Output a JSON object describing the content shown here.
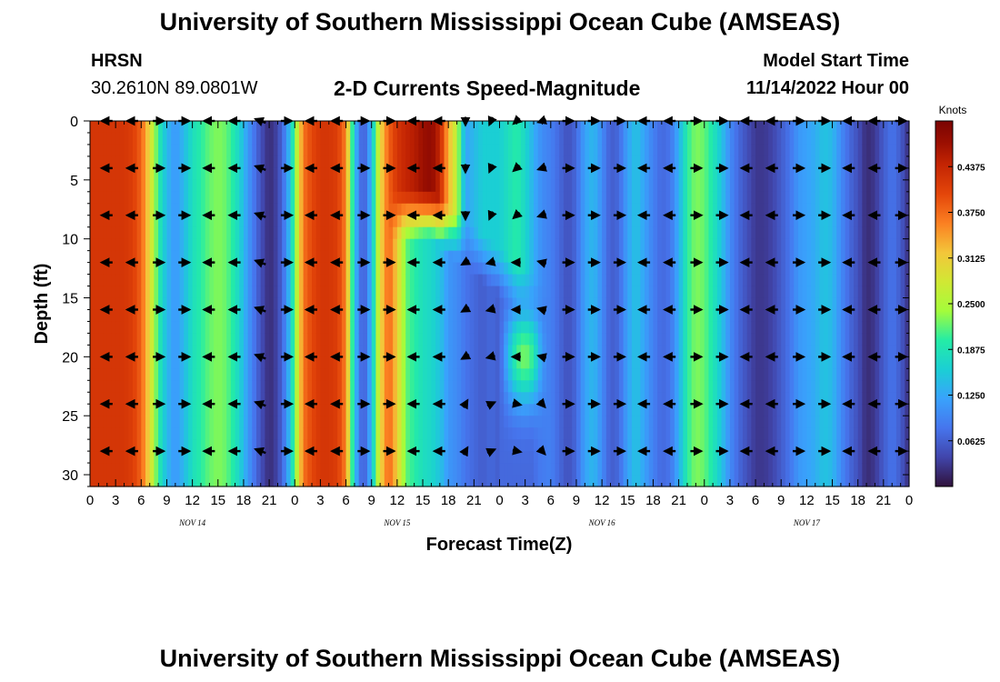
{
  "header": {
    "title": "University of Southern Mississippi Ocean Cube (AMSEAS)",
    "station": "HRSN",
    "coordinates": "30.2610N  89.0801W",
    "subtitle": "2-D Currents Speed-Magnitude",
    "model_start_label": "Model Start Time",
    "model_start_value": "11/14/2022 Hour 00"
  },
  "footer": {
    "title": "University of Southern Mississippi Ocean Cube (AMSEAS)"
  },
  "chart_data": {
    "type": "heatmap",
    "title": "2-D Currents Speed-Magnitude",
    "xlabel": "Forecast Time(Z)",
    "ylabel": "Depth (ft)",
    "x_range_hours": [
      0,
      96
    ],
    "ylim": [
      0,
      31
    ],
    "y_inverted": true,
    "x_tick_labels": [
      "0",
      "3",
      "6",
      "9",
      "12",
      "15",
      "18",
      "21",
      "0",
      "3",
      "6",
      "9",
      "12",
      "15",
      "18",
      "21",
      "0",
      "3",
      "6",
      "9",
      "12",
      "15",
      "18",
      "21",
      "0",
      "3",
      "6",
      "9",
      "12",
      "15",
      "18",
      "21",
      "0"
    ],
    "day_labels": [
      {
        "text": "NOV 14",
        "hour": 12
      },
      {
        "text": "NOV 15",
        "hour": 36
      },
      {
        "text": "NOV 16",
        "hour": 60
      },
      {
        "text": "NOV 17",
        "hour": 84
      }
    ],
    "y_ticks": [
      0,
      5,
      10,
      15,
      20,
      25,
      30
    ],
    "colorbar": {
      "label": "Knots",
      "range": [
        0,
        0.5
      ],
      "ticks": [
        "0.0625",
        "0.1250",
        "0.1875",
        "0.2500",
        "0.3125",
        "0.3750",
        "0.4375"
      ]
    },
    "surface_speed_knots_by_hour": [
      [
        0,
        0.42
      ],
      [
        1,
        0.42
      ],
      [
        2,
        0.42
      ],
      [
        3,
        0.42
      ],
      [
        4,
        0.42
      ],
      [
        5,
        0.41
      ],
      [
        6,
        0.38
      ],
      [
        7,
        0.3
      ],
      [
        8,
        0.2
      ],
      [
        9,
        0.14
      ],
      [
        10,
        0.11
      ],
      [
        11,
        0.14
      ],
      [
        12,
        0.18
      ],
      [
        13,
        0.2
      ],
      [
        14,
        0.22
      ],
      [
        15,
        0.23
      ],
      [
        16,
        0.22
      ],
      [
        17,
        0.19
      ],
      [
        18,
        0.14
      ],
      [
        19,
        0.09
      ],
      [
        20,
        0.05
      ],
      [
        21,
        0.02
      ],
      [
        22,
        0.04
      ],
      [
        23,
        0.1
      ],
      [
        24,
        0.22
      ],
      [
        25,
        0.37
      ],
      [
        26,
        0.4
      ],
      [
        27,
        0.42
      ],
      [
        28,
        0.42
      ],
      [
        29,
        0.41
      ],
      [
        30,
        0.36
      ],
      [
        31,
        0.15
      ],
      [
        32,
        0.05
      ],
      [
        33,
        0.14
      ],
      [
        34,
        0.3
      ],
      [
        35,
        0.38
      ],
      [
        36,
        0.42
      ],
      [
        37,
        0.44
      ],
      [
        38,
        0.45
      ],
      [
        39,
        0.47
      ],
      [
        40,
        0.48
      ],
      [
        41,
        0.44
      ],
      [
        42,
        0.33
      ],
      [
        43,
        0.26
      ],
      [
        44,
        0.12
      ],
      [
        45,
        0.14
      ],
      [
        46,
        0.16
      ],
      [
        47,
        0.16
      ],
      [
        48,
        0.16
      ],
      [
        49,
        0.18
      ],
      [
        50,
        0.2
      ],
      [
        51,
        0.17
      ],
      [
        52,
        0.13
      ],
      [
        53,
        0.1
      ],
      [
        54,
        0.09
      ],
      [
        55,
        0.07
      ],
      [
        56,
        0.05
      ],
      [
        57,
        0.07
      ],
      [
        58,
        0.12
      ],
      [
        59,
        0.14
      ],
      [
        60,
        0.1
      ],
      [
        61,
        0.06
      ],
      [
        62,
        0.07
      ],
      [
        63,
        0.12
      ],
      [
        64,
        0.15
      ],
      [
        65,
        0.12
      ],
      [
        66,
        0.09
      ],
      [
        67,
        0.07
      ],
      [
        68,
        0.08
      ],
      [
        69,
        0.13
      ],
      [
        70,
        0.2
      ],
      [
        71,
        0.23
      ],
      [
        72,
        0.22
      ],
      [
        73,
        0.19
      ],
      [
        74,
        0.15
      ],
      [
        75,
        0.1
      ],
      [
        76,
        0.07
      ],
      [
        77,
        0.05
      ],
      [
        78,
        0.03
      ],
      [
        79,
        0.03
      ],
      [
        80,
        0.04
      ],
      [
        81,
        0.06
      ],
      [
        82,
        0.08
      ],
      [
        83,
        0.11
      ],
      [
        84,
        0.12
      ],
      [
        85,
        0.13
      ],
      [
        86,
        0.15
      ],
      [
        87,
        0.14
      ],
      [
        88,
        0.1
      ],
      [
        89,
        0.07
      ],
      [
        90,
        0.05
      ],
      [
        91,
        0.02
      ],
      [
        92,
        0.03
      ],
      [
        93,
        0.06
      ],
      [
        94,
        0.08
      ],
      [
        95,
        0.06
      ],
      [
        96,
        0.02
      ]
    ],
    "deep_speed_knots_by_hour": [
      [
        35,
        0.18
      ],
      [
        36,
        0.2
      ],
      [
        37,
        0.22
      ],
      [
        38,
        0.2
      ],
      [
        39,
        0.18
      ],
      [
        40,
        0.17
      ],
      [
        41,
        0.15
      ],
      [
        42,
        0.11
      ],
      [
        43,
        0.1
      ],
      [
        44,
        0.08
      ],
      [
        45,
        0.07
      ],
      [
        46,
        0.06
      ],
      [
        47,
        0.07
      ],
      [
        48,
        0.06
      ],
      [
        49,
        0.14
      ],
      [
        50,
        0.21
      ],
      [
        51,
        0.23
      ],
      [
        52,
        0.2
      ],
      [
        53,
        0.13
      ],
      [
        54,
        0.08
      ]
    ],
    "deep_depth_ft": 20,
    "arrow_depths_ft": [
      0,
      4,
      8,
      12,
      16,
      20,
      24,
      28
    ],
    "arrow_hours": [
      2,
      5,
      8,
      11,
      14,
      17,
      20,
      23,
      26,
      29,
      32,
      35,
      38,
      41,
      44,
      47,
      50,
      53,
      56,
      59,
      62,
      65,
      68,
      71,
      74,
      77,
      80,
      83,
      86,
      89,
      92,
      95
    ]
  }
}
